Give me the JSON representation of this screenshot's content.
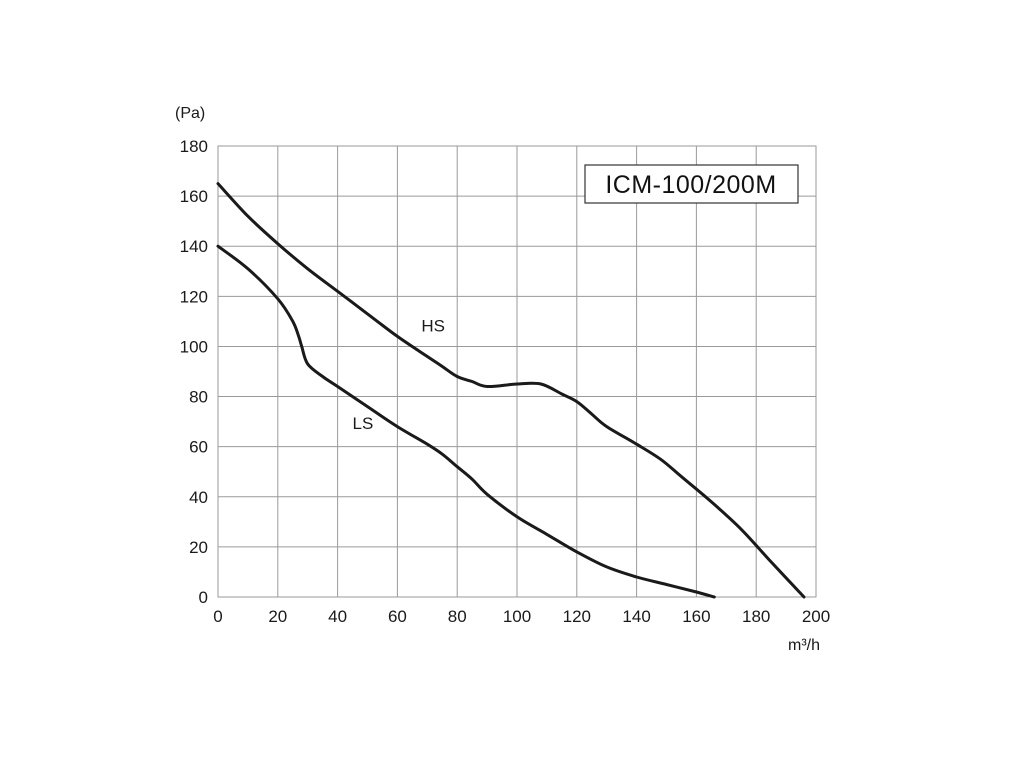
{
  "chart_data": {
    "type": "line",
    "title": "ICM-100/200M",
    "xlabel": "m³/h",
    "ylabel": "(Pa)",
    "xlim": [
      0,
      200
    ],
    "ylim": [
      0,
      180
    ],
    "x_ticks": [
      0,
      20,
      40,
      60,
      80,
      100,
      120,
      140,
      160,
      180,
      200
    ],
    "y_ticks": [
      0,
      20,
      40,
      60,
      80,
      100,
      120,
      140,
      160,
      180
    ],
    "grid": true,
    "series": [
      {
        "name": "HS",
        "x": [
          0,
          10,
          20,
          30,
          40,
          50,
          60,
          70,
          75,
          80,
          85,
          90,
          100,
          108,
          115,
          120,
          125,
          130,
          140,
          148,
          155,
          165,
          175,
          185,
          196
        ],
        "y": [
          165,
          152,
          141,
          131,
          122,
          113,
          104,
          96,
          92,
          88,
          86,
          84,
          85,
          85,
          81,
          78,
          73,
          68,
          61,
          55,
          48,
          38,
          27,
          14,
          0
        ]
      },
      {
        "name": "LS",
        "x": [
          0,
          10,
          20,
          25,
          27,
          28,
          30,
          35,
          40,
          50,
          60,
          70,
          75,
          80,
          85,
          90,
          100,
          110,
          120,
          130,
          140,
          150,
          160,
          166
        ],
        "y": [
          140,
          131,
          119,
          110,
          104,
          100,
          93,
          88,
          84,
          76,
          68,
          61,
          57,
          52,
          47,
          41,
          32,
          25,
          18,
          12,
          8,
          5,
          2,
          0
        ]
      }
    ]
  }
}
